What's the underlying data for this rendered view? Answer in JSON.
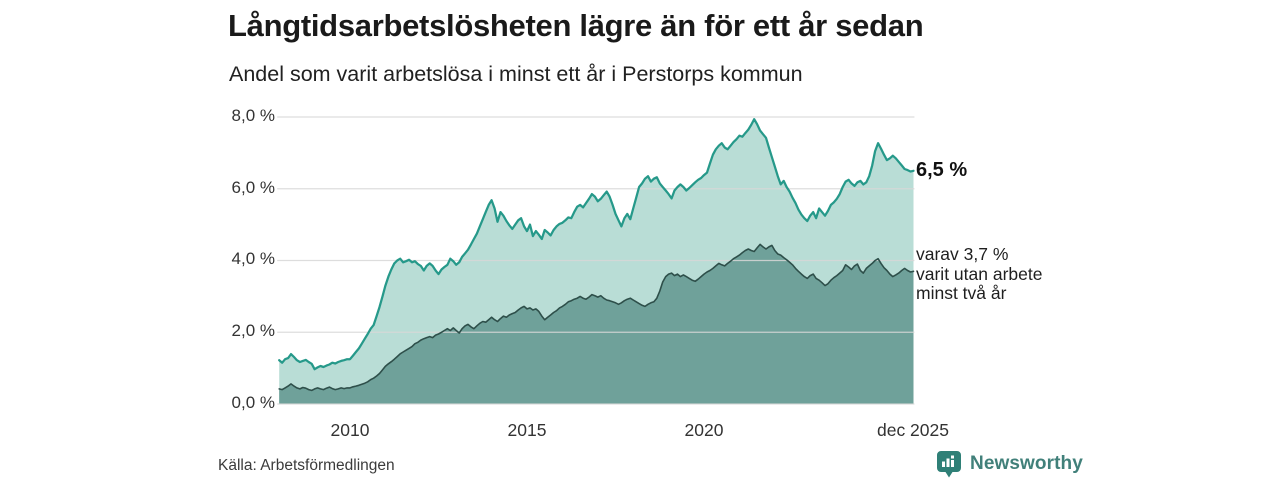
{
  "header": {
    "title": "Långtidsarbetslösheten lägre än för ett år sedan",
    "subtitle": "Andel som varit arbetslösa i minst ett år i Perstorps kommun"
  },
  "chart_data": {
    "type": "area",
    "title": "Långtidsarbetslösheten lägre än för ett år sedan",
    "subtitle": "Andel som varit arbetslösa i minst ett år i Perstorps kommun",
    "unit": "%",
    "x_start_year": 2008.0,
    "x_end_year": 2025.917,
    "x_ticks": [
      {
        "label": "2010",
        "year": 2010
      },
      {
        "label": "2015",
        "year": 2015
      },
      {
        "label": "2020",
        "year": 2020
      },
      {
        "label": "dec 2025",
        "year": 2025.917
      }
    ],
    "y_ticks": [
      {
        "label": "0,0 %",
        "value": 0
      },
      {
        "label": "2,0 %",
        "value": 2
      },
      {
        "label": "4,0 %",
        "value": 4
      },
      {
        "label": "6,0 %",
        "value": 6
      },
      {
        "label": "8,0 %",
        "value": 8
      }
    ],
    "ylim": [
      0,
      8.3
    ],
    "grid": true,
    "series": [
      {
        "name": "Andel arbetslösa minst ett år",
        "line_color": "#26998a",
        "fill_color": "#b9ddd6",
        "line_width": 2.25,
        "end_value_label": "6,5 %",
        "values": [
          1.22,
          1.15,
          1.25,
          1.28,
          1.39,
          1.31,
          1.22,
          1.17,
          1.2,
          1.23,
          1.17,
          1.12,
          0.97,
          1.02,
          1.06,
          1.03,
          1.07,
          1.1,
          1.15,
          1.13,
          1.17,
          1.2,
          1.22,
          1.25,
          1.25,
          1.35,
          1.45,
          1.55,
          1.68,
          1.82,
          1.95,
          2.1,
          2.2,
          2.45,
          2.7,
          3.0,
          3.3,
          3.55,
          3.75,
          3.92,
          4.0,
          4.05,
          3.95,
          3.98,
          4.02,
          3.95,
          3.98,
          3.9,
          3.85,
          3.72,
          3.85,
          3.92,
          3.85,
          3.72,
          3.62,
          3.75,
          3.82,
          3.88,
          4.05,
          3.98,
          3.88,
          3.95,
          4.1,
          4.2,
          4.3,
          4.45,
          4.6,
          4.75,
          4.95,
          5.15,
          5.35,
          5.55,
          5.68,
          5.45,
          5.08,
          5.35,
          5.25,
          5.1,
          4.98,
          4.88,
          5.0,
          5.12,
          5.18,
          4.95,
          4.82,
          5.0,
          4.68,
          4.82,
          4.72,
          4.6,
          4.85,
          4.78,
          4.7,
          4.85,
          4.95,
          5.02,
          5.05,
          5.12,
          5.2,
          5.18,
          5.35,
          5.5,
          5.55,
          5.48,
          5.6,
          5.72,
          5.85,
          5.78,
          5.65,
          5.72,
          5.82,
          5.92,
          5.78,
          5.55,
          5.3,
          5.12,
          4.95,
          5.18,
          5.3,
          5.15,
          5.45,
          5.75,
          6.05,
          6.15,
          6.28,
          6.35,
          6.2,
          6.28,
          6.32,
          6.15,
          6.05,
          5.95,
          5.85,
          5.73,
          5.95,
          6.05,
          6.12,
          6.05,
          5.95,
          6.02,
          6.1,
          6.18,
          6.25,
          6.3,
          6.38,
          6.45,
          6.7,
          6.95,
          7.1,
          7.2,
          7.27,
          7.15,
          7.1,
          7.2,
          7.3,
          7.38,
          7.48,
          7.45,
          7.55,
          7.65,
          7.78,
          7.94,
          7.8,
          7.62,
          7.52,
          7.42,
          7.15,
          6.88,
          6.62,
          6.35,
          6.12,
          6.22,
          6.05,
          5.92,
          5.75,
          5.6,
          5.42,
          5.28,
          5.18,
          5.1,
          5.25,
          5.35,
          5.18,
          5.45,
          5.35,
          5.25,
          5.38,
          5.55,
          5.62,
          5.72,
          5.85,
          6.05,
          6.2,
          6.25,
          6.15,
          6.08,
          6.18,
          6.22,
          6.12,
          6.18,
          6.35,
          6.65,
          7.05,
          7.27,
          7.12,
          6.95,
          6.8,
          6.85,
          6.92,
          6.85,
          6.75,
          6.65,
          6.55,
          6.52,
          6.48,
          6.5
        ]
      },
      {
        "name": "varav utan arbete minst två år",
        "line_color": "#2e4f4a",
        "fill_color": "#6fa19a",
        "line_width": 1.6,
        "end_value_label": "varav 3,7 % varit utan arbete minst två år",
        "values": [
          0.42,
          0.4,
          0.45,
          0.5,
          0.56,
          0.5,
          0.45,
          0.42,
          0.46,
          0.44,
          0.4,
          0.38,
          0.42,
          0.45,
          0.42,
          0.4,
          0.44,
          0.47,
          0.43,
          0.4,
          0.42,
          0.45,
          0.43,
          0.45,
          0.45,
          0.48,
          0.5,
          0.52,
          0.55,
          0.58,
          0.62,
          0.68,
          0.72,
          0.78,
          0.85,
          0.95,
          1.05,
          1.12,
          1.18,
          1.25,
          1.32,
          1.4,
          1.45,
          1.5,
          1.55,
          1.6,
          1.68,
          1.72,
          1.78,
          1.82,
          1.85,
          1.88,
          1.85,
          1.92,
          1.95,
          2.0,
          2.05,
          2.1,
          2.05,
          2.12,
          2.05,
          1.98,
          2.1,
          2.18,
          2.22,
          2.15,
          2.1,
          2.18,
          2.25,
          2.3,
          2.28,
          2.35,
          2.42,
          2.35,
          2.3,
          2.38,
          2.45,
          2.42,
          2.48,
          2.52,
          2.55,
          2.62,
          2.68,
          2.72,
          2.65,
          2.68,
          2.62,
          2.65,
          2.58,
          2.45,
          2.35,
          2.42,
          2.48,
          2.55,
          2.6,
          2.68,
          2.72,
          2.78,
          2.85,
          2.88,
          2.92,
          2.95,
          3.0,
          2.95,
          2.92,
          2.98,
          3.05,
          3.02,
          2.98,
          3.02,
          2.95,
          2.9,
          2.88,
          2.85,
          2.82,
          2.78,
          2.82,
          2.88,
          2.92,
          2.95,
          2.9,
          2.85,
          2.8,
          2.75,
          2.72,
          2.78,
          2.82,
          2.85,
          2.95,
          3.15,
          3.4,
          3.55,
          3.62,
          3.65,
          3.58,
          3.62,
          3.55,
          3.6,
          3.55,
          3.5,
          3.45,
          3.42,
          3.48,
          3.55,
          3.62,
          3.68,
          3.72,
          3.78,
          3.85,
          3.92,
          3.88,
          3.85,
          3.92,
          3.98,
          4.05,
          4.1,
          4.15,
          4.22,
          4.28,
          4.32,
          4.28,
          4.25,
          4.35,
          4.45,
          4.38,
          4.32,
          4.38,
          4.42,
          4.28,
          4.18,
          4.15,
          4.08,
          4.02,
          3.95,
          3.88,
          3.78,
          3.7,
          3.62,
          3.55,
          3.5,
          3.58,
          3.62,
          3.5,
          3.45,
          3.38,
          3.3,
          3.35,
          3.45,
          3.52,
          3.58,
          3.65,
          3.72,
          3.88,
          3.82,
          3.75,
          3.85,
          3.9,
          3.72,
          3.65,
          3.78,
          3.85,
          3.92,
          4.0,
          4.05,
          3.92,
          3.8,
          3.72,
          3.62,
          3.55,
          3.6,
          3.65,
          3.72,
          3.78,
          3.72,
          3.68,
          3.7
        ]
      }
    ],
    "grid_color": "#d8d8d8"
  },
  "annotations": {
    "series1_end": "6,5 %",
    "series2_end_lines": [
      "varav 3,7 %",
      "varit utan arbete",
      "minst två år"
    ]
  },
  "footer": {
    "source": "Källa: Arbetsförmedlingen",
    "brand": "Newsworthy",
    "brand_color": "#41807a",
    "brand_icon": "bar-chart-pin-icon",
    "brand_icon_color": "#2f8077"
  }
}
